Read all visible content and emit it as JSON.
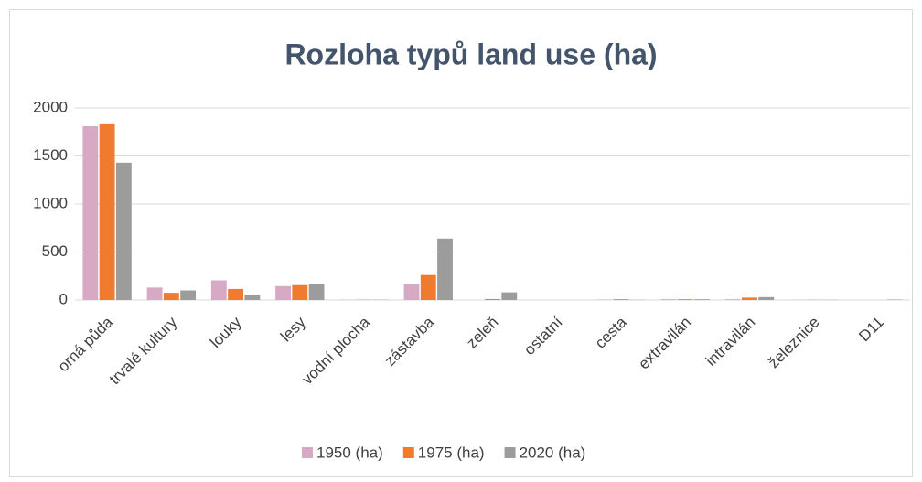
{
  "chart_data": {
    "type": "bar",
    "title": "Rozloha typů land use (ha)",
    "categories": [
      "orná půda",
      "trvalé kultury",
      "louky",
      "lesy",
      "vodní plocha",
      "zástavba",
      "zeleň",
      "ostatní",
      "cesta",
      "extravilán",
      "intravilán",
      "železnice",
      "D11"
    ],
    "series": [
      {
        "name": "1950 (ha)",
        "color": "#d8a9c5",
        "values": [
          1810,
          130,
          205,
          145,
          3,
          165,
          0,
          0,
          5,
          8,
          8,
          2,
          0
        ]
      },
      {
        "name": "1975 (ha)",
        "color": "#f07b2e",
        "values": [
          1830,
          75,
          115,
          155,
          3,
          260,
          10,
          0,
          8,
          8,
          25,
          2,
          0
        ]
      },
      {
        "name": "2020 (ha)",
        "color": "#9c9c9c",
        "values": [
          1430,
          100,
          55,
          165,
          3,
          640,
          80,
          0,
          2,
          8,
          30,
          2,
          5
        ]
      }
    ],
    "ylim": [
      0,
      2000
    ],
    "yticks": [
      0,
      500,
      1000,
      1500,
      2000
    ],
    "grid": true,
    "legend": "bottom"
  }
}
